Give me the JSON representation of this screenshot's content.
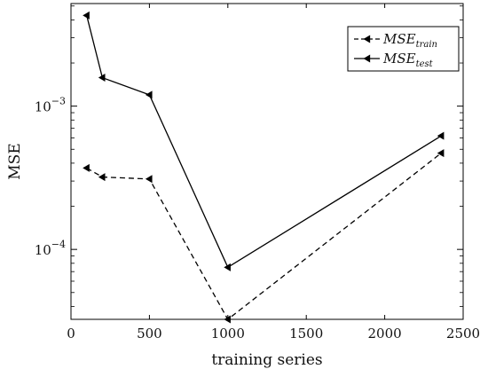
{
  "chart_data": {
    "type": "line",
    "xlabel": "training series",
    "ylabel": "MSE",
    "xlim": [
      0,
      2500
    ],
    "ylim": [
      3.25e-05,
      0.0052
    ],
    "yscale": "log",
    "grid": false,
    "legend_position": "top-right",
    "xticks": [
      {
        "value": 0,
        "label": "0"
      },
      {
        "value": 500,
        "label": "500"
      },
      {
        "value": 1000,
        "label": "1000"
      },
      {
        "value": 1500,
        "label": "1500"
      },
      {
        "value": 2000,
        "label": "2000"
      },
      {
        "value": 2500,
        "label": "2500"
      }
    ],
    "yticks": [
      {
        "value": 0.0001,
        "base": "10",
        "exp": "−4"
      },
      {
        "value": 0.001,
        "base": "10",
        "exp": "−3"
      }
    ],
    "series": [
      {
        "name": "MSE_train",
        "legend_main": "MSE",
        "legend_sub": "train",
        "line": "dashed",
        "marker": "triangle-left",
        "color": "#000000",
        "x": [
          100,
          200,
          500,
          1000,
          2360
        ],
        "y": [
          0.00037,
          0.00032,
          0.00031,
          3.25e-05,
          0.00047
        ]
      },
      {
        "name": "MSE_test",
        "legend_main": "MSE",
        "legend_sub": "test",
        "line": "solid",
        "marker": "triangle-left",
        "color": "#000000",
        "x": [
          100,
          200,
          500,
          1000,
          2360
        ],
        "y": [
          0.0043,
          0.00158,
          0.0012,
          7.5e-05,
          0.00062
        ]
      }
    ]
  }
}
